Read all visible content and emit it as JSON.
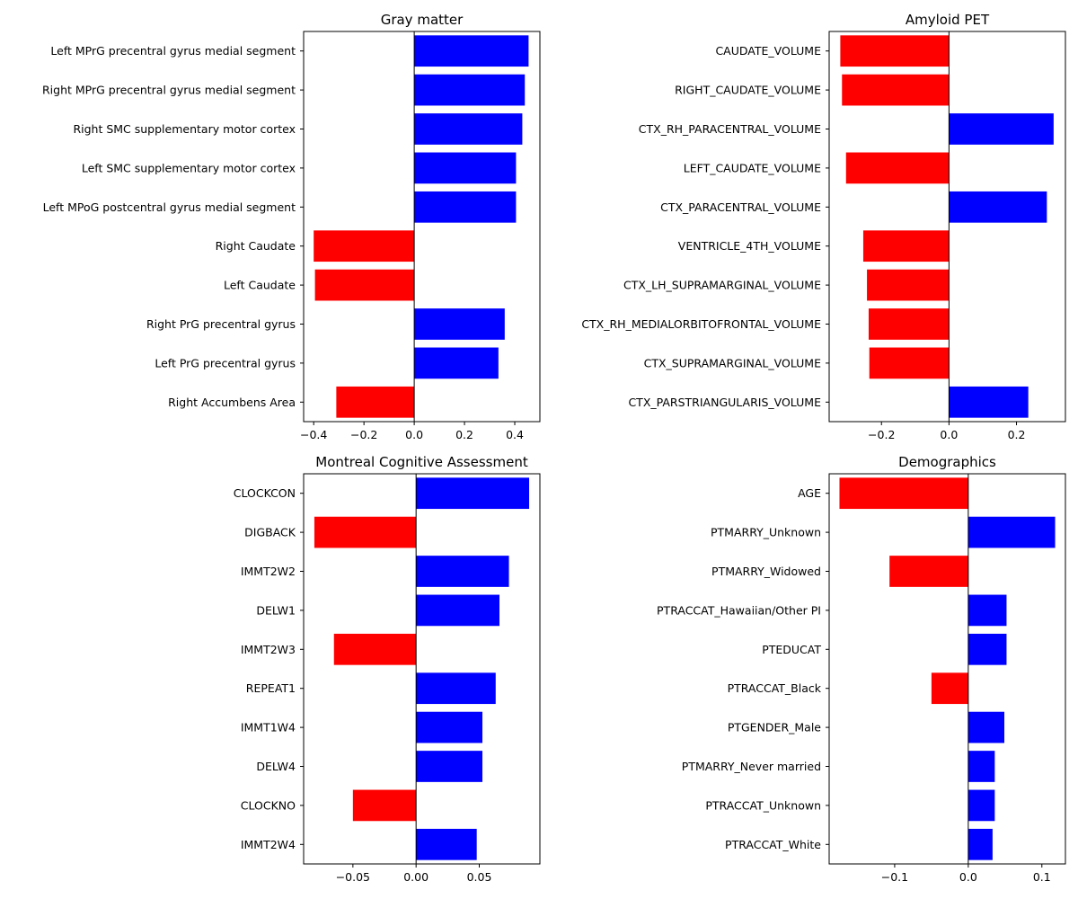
{
  "chart_data": [
    {
      "type": "bar",
      "orientation": "horizontal",
      "title": "Gray matter",
      "xlabel": "",
      "ylabel": "",
      "categories": [
        "Left MPrG precentral gyrus medial segment",
        "Right MPrG precentral gyrus medial segment",
        "Right SMC supplementary motor cortex",
        "Left SMC supplementary motor cortex",
        "Left MPoG postcentral gyrus medial segment",
        "Right Caudate",
        "Left Caudate",
        "Right PrG precentral gyrus",
        "Left PrG precentral gyrus",
        "Right Accumbens Area"
      ],
      "values": [
        0.455,
        0.44,
        0.43,
        0.405,
        0.405,
        -0.4,
        -0.395,
        0.36,
        0.335,
        -0.31
      ],
      "xlim": [
        -0.44,
        0.5
      ],
      "xticks": [
        -0.4,
        -0.2,
        0.0,
        0.2,
        0.4
      ],
      "xtick_labels": [
        "−0.4",
        "−0.2",
        "0.0",
        "0.2",
        "0.4"
      ],
      "positive_color": "#0000ff",
      "negative_color": "#ff0000"
    },
    {
      "type": "bar",
      "orientation": "horizontal",
      "title": "Amyloid PET",
      "xlabel": "",
      "ylabel": "",
      "categories": [
        "CAUDATE_VOLUME",
        "RIGHT_CAUDATE_VOLUME",
        "CTX_RH_PARACENTRAL_VOLUME",
        "LEFT_CAUDATE_VOLUME",
        "CTX_PARACENTRAL_VOLUME",
        "VENTRICLE_4TH_VOLUME",
        "CTX_LH_SUPRAMARGINAL_VOLUME",
        "CTX_RH_MEDIALORBITOFRONTAL_VOLUME",
        "CTX_SUPRAMARGINAL_VOLUME",
        "CTX_PARSTRIANGULARIS_VOLUME"
      ],
      "values": [
        -0.322,
        -0.317,
        0.31,
        -0.305,
        0.29,
        -0.254,
        -0.243,
        -0.238,
        -0.236,
        0.235
      ],
      "xlim": [
        -0.355,
        0.345
      ],
      "xticks": [
        -0.2,
        0.0,
        0.2
      ],
      "xtick_labels": [
        "−0.2",
        "0.0",
        "0.2"
      ],
      "positive_color": "#0000ff",
      "negative_color": "#ff0000"
    },
    {
      "type": "bar",
      "orientation": "horizontal",
      "title": "Montreal Cognitive Assessment",
      "xlabel": "",
      "ylabel": "",
      "categories": [
        "CLOCKCON",
        "DIGBACK",
        "IMMT2W2",
        "DELW1",
        "IMMT2W3",
        "REPEAT1",
        "IMMT1W4",
        "DELW4",
        "CLOCKNO",
        "IMMT2W4"
      ],
      "values": [
        0.0895,
        -0.0805,
        0.0735,
        0.066,
        -0.065,
        0.063,
        0.0525,
        0.0525,
        -0.05,
        0.048
      ],
      "xlim": [
        -0.089,
        0.098
      ],
      "xticks": [
        -0.05,
        0.0,
        0.05
      ],
      "xtick_labels": [
        "−0.05",
        "0.00",
        "0.05"
      ],
      "positive_color": "#0000ff",
      "negative_color": "#ff0000"
    },
    {
      "type": "bar",
      "orientation": "horizontal",
      "title": "Demographics",
      "xlabel": "",
      "ylabel": "",
      "categories": [
        "AGE",
        "PTMARRY_Unknown",
        "PTMARRY_Widowed",
        "PTRACCAT_Hawaiian/Other PI",
        "PTEDUCAT",
        "PTRACCAT_Black",
        "PTGENDER_Male",
        "PTMARRY_Never married",
        "PTRACCAT_Unknown",
        "PTRACCAT_White"
      ],
      "values": [
        -0.175,
        0.118,
        -0.107,
        0.052,
        0.052,
        -0.05,
        0.049,
        0.036,
        0.036,
        0.033
      ],
      "xlim": [
        -0.189,
        0.132
      ],
      "xticks": [
        -0.1,
        0.0,
        0.1
      ],
      "xtick_labels": [
        "−0.1",
        "0.0",
        "0.1"
      ],
      "positive_color": "#0000ff",
      "negative_color": "#ff0000"
    }
  ]
}
